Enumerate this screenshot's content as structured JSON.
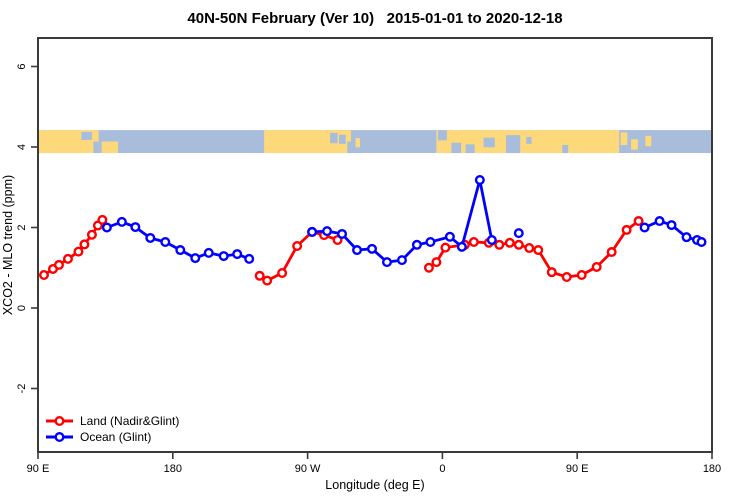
{
  "title": "40N-50N February (Ver 10)   2015-01-01 to 2020-12-18",
  "chart_data": {
    "type": "line",
    "title": "40N-50N February (Ver 10)   2015-01-01 to 2020-12-18",
    "xlabel": "Longitude (deg E)",
    "ylabel": "XCO2 - MLO trend (ppm)",
    "axis_color": "#3a3a3a",
    "x_axis": {
      "range_plot_deg": [
        90,
        540
      ],
      "ticks": [
        {
          "pos": 90,
          "label": "90 E"
        },
        {
          "pos": 180,
          "label": "180"
        },
        {
          "pos": 270,
          "label": "90 W"
        },
        {
          "pos": 360,
          "label": "0"
        },
        {
          "pos": 450,
          "label": "90 E"
        },
        {
          "pos": 540,
          "label": "180"
        }
      ]
    },
    "y_axis": {
      "range": [
        -3.6,
        6.7
      ],
      "ticks": [
        {
          "pos": -2,
          "label": "-2"
        },
        {
          "pos": 0,
          "label": "0"
        },
        {
          "pos": 2,
          "label": "2"
        },
        {
          "pos": 4,
          "label": "4"
        },
        {
          "pos": 6,
          "label": "6"
        }
      ]
    },
    "series": [
      {
        "name": "Land (Nadir&Glint)",
        "color": "#ff0000",
        "marker": "open-circle",
        "segments": [
          [
            [
              94,
              0.82
            ],
            [
              100,
              0.97
            ],
            [
              104,
              1.07
            ],
            [
              110,
              1.22
            ],
            [
              117,
              1.4
            ],
            [
              121,
              1.58
            ],
            [
              126,
              1.82
            ],
            [
              130,
              2.05
            ],
            [
              133,
              2.19
            ]
          ],
          [
            [
              238,
              0.8
            ],
            [
              243,
              0.68
            ],
            [
              253,
              0.87
            ],
            [
              263,
              1.54
            ],
            [
              273,
              1.89
            ],
            [
              281,
              1.81
            ],
            [
              290,
              1.69
            ]
          ],
          [
            [
              351,
              1.0
            ],
            [
              356,
              1.14
            ],
            [
              362,
              1.5
            ],
            [
              375,
              1.57
            ],
            [
              381,
              1.64
            ],
            [
              391,
              1.62
            ],
            [
              398,
              1.57
            ],
            [
              405,
              1.62
            ],
            [
              411,
              1.57
            ],
            [
              418,
              1.49
            ],
            [
              424,
              1.44
            ],
            [
              433,
              0.89
            ],
            [
              443,
              0.77
            ],
            [
              453,
              0.82
            ],
            [
              463,
              1.02
            ],
            [
              473,
              1.39
            ],
            [
              483,
              1.94
            ],
            [
              491,
              2.16
            ]
          ]
        ],
        "isolated_points": []
      },
      {
        "name": "Ocean (Glint)",
        "color": "#0000ff",
        "marker": "open-circle",
        "segments": [
          [
            [
              136,
              2.0
            ],
            [
              146,
              2.14
            ],
            [
              155,
              2.01
            ],
            [
              165,
              1.74
            ],
            [
              175,
              1.64
            ],
            [
              185,
              1.44
            ],
            [
              195,
              1.24
            ],
            [
              204,
              1.37
            ],
            [
              214,
              1.29
            ],
            [
              223,
              1.34
            ],
            [
              231,
              1.22
            ]
          ],
          [
            [
              273,
              1.89
            ],
            [
              283,
              1.91
            ],
            [
              293,
              1.84
            ],
            [
              303,
              1.44
            ],
            [
              313,
              1.47
            ],
            [
              323,
              1.14
            ],
            [
              333,
              1.19
            ],
            [
              343,
              1.57
            ],
            [
              352,
              1.64
            ],
            [
              365,
              1.77
            ],
            [
              373,
              1.52
            ],
            [
              385,
              3.18
            ],
            [
              393,
              1.69
            ]
          ],
          [
            [
              495,
              2.0
            ],
            [
              505,
              2.16
            ],
            [
              513,
              2.06
            ],
            [
              523,
              1.76
            ],
            [
              530,
              1.69
            ],
            [
              533,
              1.64
            ]
          ]
        ],
        "isolated_points": [
          [
            411,
            1.86
          ]
        ]
      }
    ],
    "map_band": {
      "description": "40N-50N latitude land/ocean strip",
      "value_top": 4.42,
      "value_bottom": 3.85,
      "ocean_color": "#a8bddb",
      "land_color": "#fed97c",
      "land_segments": [
        {
          "from": 90,
          "to": 130.5
        },
        {
          "from": 132.5,
          "to": 143.5,
          "top": 0.5,
          "h": 0.5
        },
        {
          "from": 241,
          "to": 299
        },
        {
          "from": 302,
          "to": 305,
          "top": 0.35,
          "h": 0.4
        },
        {
          "from": 356,
          "to": 478
        },
        {
          "from": 479,
          "to": 483.5,
          "top": 0.1,
          "h": 0.55
        },
        {
          "from": 486,
          "to": 490.5,
          "top": 0.4,
          "h": 0.45
        },
        {
          "from": 495.5,
          "to": 499.5,
          "top": 0.25,
          "h": 0.45
        }
      ],
      "water_patches": [
        {
          "from": 119,
          "to": 126,
          "top": 0.08,
          "h": 0.35
        },
        {
          "from": 127,
          "to": 130.5,
          "top": 0.5,
          "h": 0.5
        },
        {
          "from": 285,
          "to": 290,
          "top": 0.12,
          "h": 0.45
        },
        {
          "from": 291,
          "to": 295.5,
          "top": 0.2,
          "h": 0.4
        },
        {
          "from": 296.5,
          "to": 299,
          "top": 0.5,
          "h": 0.5
        },
        {
          "from": 357,
          "to": 363,
          "top": 0,
          "h": 0.45
        },
        {
          "from": 366,
          "to": 372.5,
          "top": 0.55,
          "h": 0.45
        },
        {
          "from": 375.5,
          "to": 381.5,
          "top": 0.62,
          "h": 0.38
        },
        {
          "from": 387.5,
          "to": 395,
          "top": 0.33,
          "h": 0.42
        },
        {
          "from": 402.5,
          "to": 412,
          "top": 0.22,
          "h": 0.78
        },
        {
          "from": 416,
          "to": 419.5,
          "top": 0.3,
          "h": 0.3
        },
        {
          "from": 440,
          "to": 444,
          "top": 0.65,
          "h": 0.35
        }
      ]
    },
    "legend": {
      "position": "bottom-left",
      "items": [
        {
          "label": "Land (Nadir&Glint)",
          "color": "#ff0000"
        },
        {
          "label": "Ocean (Glint)",
          "color": "#0000ff"
        }
      ]
    }
  }
}
